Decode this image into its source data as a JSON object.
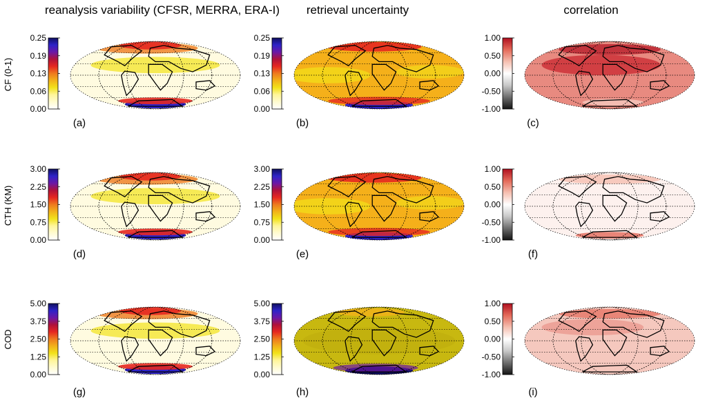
{
  "column_titles": [
    "reanalysis variability (CFSR, MERRA, ERA-I)",
    "retrieval uncertainty",
    "correlation"
  ],
  "row_labels": [
    "CF (0-1)",
    "CTH (KM)",
    "COD"
  ],
  "panel_letters": [
    "(a)",
    "(b)",
    "(c)",
    "(d)",
    "(e)",
    "(f)",
    "(g)",
    "(h)",
    "(i)"
  ],
  "colors": {
    "scale_seq": [
      "#ffffff",
      "#fffbd0",
      "#fff59a",
      "#f2e21a",
      "#f2b21a",
      "#ee7a1e",
      "#e62820",
      "#b0123a",
      "#6b18a6",
      "#2e24c8",
      "#101060"
    ],
    "scale_div": [
      "#141414",
      "#6e6e6e",
      "#c8c8c8",
      "#ffffff",
      "#f5bfb0",
      "#e46a5a",
      "#b01020"
    ]
  },
  "chart_data": [
    {
      "type": "heatmap",
      "panel": "(a)",
      "quantity": "CF (0-1)",
      "column": "reanalysis variability (CFSR, MERRA, ERA-I)",
      "colorbar_ticks": [
        "0.25",
        "0.19",
        "0.13",
        "0.06",
        "0.00"
      ],
      "range": [
        0,
        0.25
      ],
      "scale": "sequential",
      "projection": "mollweide"
    },
    {
      "type": "heatmap",
      "panel": "(b)",
      "quantity": "CF (0-1)",
      "column": "retrieval uncertainty",
      "colorbar_ticks": [
        "0.25",
        "0.19",
        "0.13",
        "0.06",
        "0.00"
      ],
      "range": [
        0,
        0.25
      ],
      "scale": "sequential",
      "projection": "mollweide"
    },
    {
      "type": "heatmap",
      "panel": "(c)",
      "quantity": "CF (0-1)",
      "column": "correlation",
      "colorbar_ticks": [
        "1.00",
        "0.50",
        "0.00",
        "-0.50",
        "-1.00"
      ],
      "range": [
        -1,
        1
      ],
      "scale": "diverging",
      "projection": "mollweide"
    },
    {
      "type": "heatmap",
      "panel": "(d)",
      "quantity": "CTH (KM)",
      "column": "reanalysis variability (CFSR, MERRA, ERA-I)",
      "colorbar_ticks": [
        "3.00",
        "2.25",
        "1.50",
        "0.75",
        "0.00"
      ],
      "range": [
        0,
        3
      ],
      "scale": "sequential",
      "projection": "mollweide"
    },
    {
      "type": "heatmap",
      "panel": "(e)",
      "quantity": "CTH (KM)",
      "column": "retrieval uncertainty",
      "colorbar_ticks": [
        "3.00",
        "2.25",
        "1.50",
        "0.75",
        "0.00"
      ],
      "range": [
        0,
        3
      ],
      "scale": "sequential",
      "projection": "mollweide"
    },
    {
      "type": "heatmap",
      "panel": "(f)",
      "quantity": "CTH (KM)",
      "column": "correlation",
      "colorbar_ticks": [
        "1.00",
        "0.50",
        "0.00",
        "-0.50",
        "-1.00"
      ],
      "range": [
        -1,
        1
      ],
      "scale": "diverging",
      "projection": "mollweide"
    },
    {
      "type": "heatmap",
      "panel": "(g)",
      "quantity": "COD",
      "column": "reanalysis variability (CFSR, MERRA, ERA-I)",
      "colorbar_ticks": [
        "5.00",
        "3.75",
        "2.50",
        "1.25",
        "0.00"
      ],
      "range": [
        0,
        5
      ],
      "scale": "sequential",
      "projection": "mollweide"
    },
    {
      "type": "heatmap",
      "panel": "(h)",
      "quantity": "COD",
      "column": "retrieval uncertainty",
      "colorbar_ticks": [
        "5.00",
        "3.75",
        "2.50",
        "1.25",
        "0.00"
      ],
      "range": [
        0,
        5
      ],
      "scale": "sequential",
      "projection": "mollweide"
    },
    {
      "type": "heatmap",
      "panel": "(i)",
      "quantity": "COD",
      "column": "correlation",
      "colorbar_ticks": [
        "1.00",
        "0.50",
        "0.00",
        "-0.50",
        "-1.00"
      ],
      "range": [
        -1,
        1
      ],
      "scale": "diverging",
      "projection": "mollweide"
    }
  ]
}
